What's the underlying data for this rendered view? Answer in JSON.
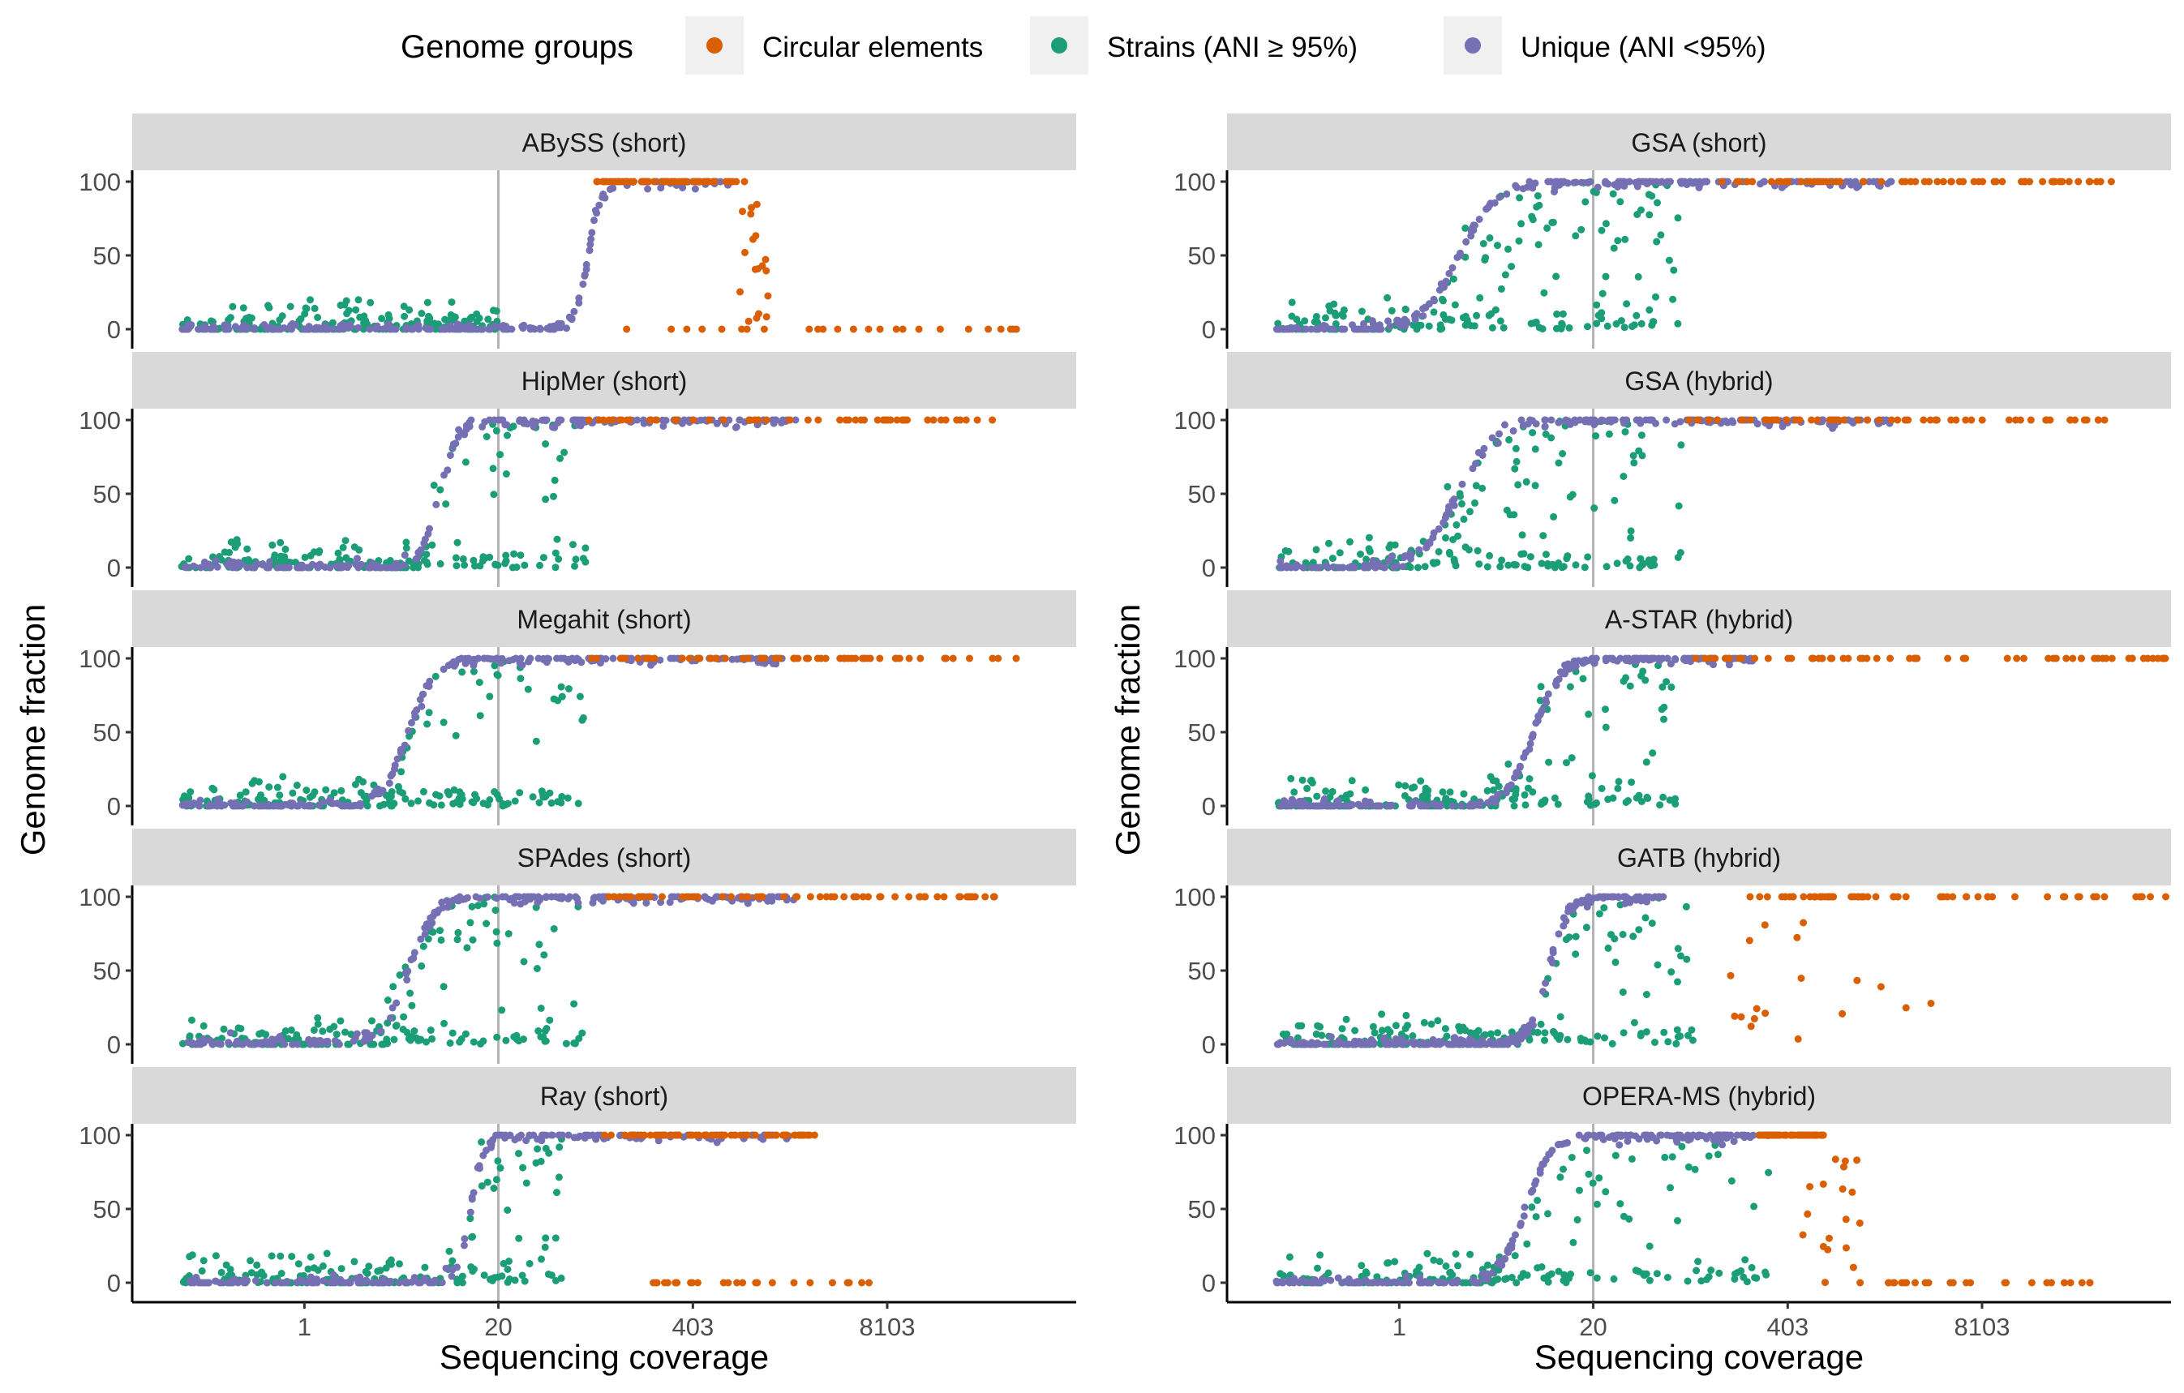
{
  "legend": {
    "title": "Genome groups",
    "items": [
      {
        "key": "circular",
        "label": "Circular elements",
        "color": "#D95F02"
      },
      {
        "key": "strains",
        "label": "Strains (ANI ≥ 95%)",
        "color": "#1B9E77"
      },
      {
        "key": "unique",
        "label": "Unique (ANI <95%)",
        "color": "#7570B3"
      }
    ]
  },
  "chart_data": {
    "type": "scatter",
    "xlabel": "Sequencing coverage",
    "ylabel": "Genome fraction",
    "x_scale": "log",
    "x_ticks": [
      1,
      20,
      403,
      8103
    ],
    "y_ticks": [
      0,
      50,
      100
    ],
    "xlim": [
      0.07,
      150000
    ],
    "ylim": [
      0,
      100
    ],
    "reference_line_x": 20,
    "panels": [
      {
        "title": "ABySS (short)",
        "column": 0,
        "row": 0,
        "strain_max": 20,
        "unique_curve": {
          "midpoint": 80,
          "sharpness": 10,
          "max_x": 700
        },
        "circular": {
          "x_min": 90,
          "x_max": 900,
          "y": 100,
          "zero_x_min": 140,
          "zero_x_max": 60000,
          "drop_x_min": 800,
          "drop_x_max": 1300
        }
      },
      {
        "title": "HipMer (short)",
        "column": 0,
        "row": 1,
        "strain_max": 80,
        "unique_curve": {
          "midpoint": 8,
          "sharpness": 7,
          "max_x": 2000
        },
        "circular": {
          "x_min": 80,
          "x_max": 60000,
          "y": 100
        }
      },
      {
        "title": "Megahit (short)",
        "column": 0,
        "row": 2,
        "strain_max": 75,
        "unique_curve": {
          "midpoint": 5,
          "sharpness": 5,
          "max_x": 2000
        },
        "circular": {
          "x_min": 80,
          "x_max": 60000,
          "y": 100
        }
      },
      {
        "title": "SPAdes (short)",
        "column": 0,
        "row": 3,
        "strain_max": 75,
        "unique_curve": {
          "midpoint": 5,
          "sharpness": 5,
          "max_x": 2000
        },
        "circular": {
          "x_min": 100,
          "x_max": 60000,
          "y": 100
        }
      },
      {
        "title": "Ray (short)",
        "column": 0,
        "row": 4,
        "strain_max": 55,
        "unique_curve": {
          "midpoint": 13,
          "sharpness": 10,
          "max_x": 2000
        },
        "circular": {
          "x_min": 100,
          "x_max": 3000,
          "y": 100,
          "zero_x_min": 200,
          "zero_x_max": 8000
        }
      },
      {
        "title": "GSA (short)",
        "column": 1,
        "row": 0,
        "strain_max": 75,
        "unique_curve": {
          "midpoint": 2.5,
          "sharpness": 3.5,
          "max_x": 2000
        },
        "circular": {
          "x_min": 120,
          "x_max": 60000,
          "y": 100
        }
      },
      {
        "title": "GSA (hybrid)",
        "column": 1,
        "row": 1,
        "strain_max": 78,
        "unique_curve": {
          "midpoint": 2.5,
          "sharpness": 3.5,
          "max_x": 2000
        },
        "circular": {
          "x_min": 80,
          "x_max": 60000,
          "y": 100
        }
      },
      {
        "title": "A-STAR (hybrid)",
        "column": 1,
        "row": 2,
        "strain_max": 75,
        "unique_curve": {
          "midpoint": 8,
          "sharpness": 5,
          "max_x": 250
        },
        "circular": {
          "x_min": 80,
          "x_max": 150000,
          "y": 100
        }
      },
      {
        "title": "GATB (hybrid)",
        "column": 1,
        "row": 3,
        "strain_max": 95,
        "unique_curve": {
          "midpoint": 10,
          "sharpness": 7,
          "max_x": 60
        },
        "circular": {
          "x_min": 200,
          "x_max": 150000,
          "y": 100,
          "drop_x_min": 150,
          "drop_x_max": 4000
        }
      },
      {
        "title": "OPERA-MS (hybrid)",
        "column": 1,
        "row": 4,
        "strain_max": 300,
        "unique_curve": {
          "midpoint": 7,
          "sharpness": 5,
          "max_x": 300
        },
        "circular": {
          "x_min": 250,
          "x_max": 700,
          "y": 100,
          "zero_x_min": 900,
          "zero_x_max": 60000,
          "drop_x_min": 500,
          "drop_x_max": 1300
        }
      }
    ]
  }
}
